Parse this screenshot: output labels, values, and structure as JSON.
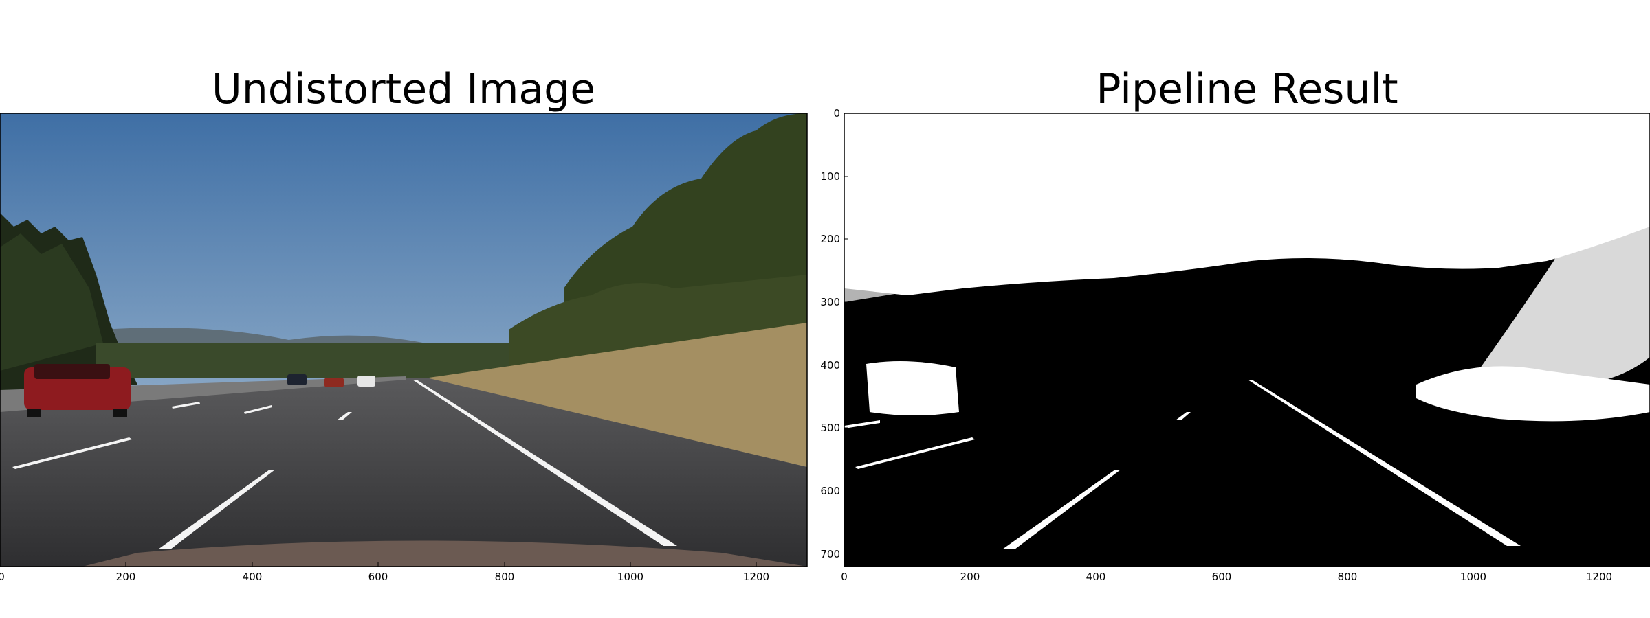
{
  "panels": [
    {
      "title": "Undistorted Image",
      "x_ticks": [
        "0",
        "200",
        "400",
        "600",
        "800",
        "1000",
        "1200"
      ],
      "y_ticks": []
    },
    {
      "title": "Pipeline Result",
      "x_ticks": [
        "0",
        "200",
        "400",
        "600",
        "800",
        "1000",
        "1200"
      ],
      "y_ticks": [
        "0",
        "100",
        "200",
        "300",
        "400",
        "500",
        "600",
        "700"
      ]
    }
  ],
  "colors": {
    "sky_top": "#3f6fa5",
    "sky_bottom": "#a6c0d8",
    "road": "#3d3d3f",
    "grass": "#a48f62",
    "trees": "#2f3b22",
    "lane_line": "#f4f4f4",
    "car": "#8e1b1f",
    "binary_bg": "#000000",
    "binary_fg": "#ffffff"
  }
}
